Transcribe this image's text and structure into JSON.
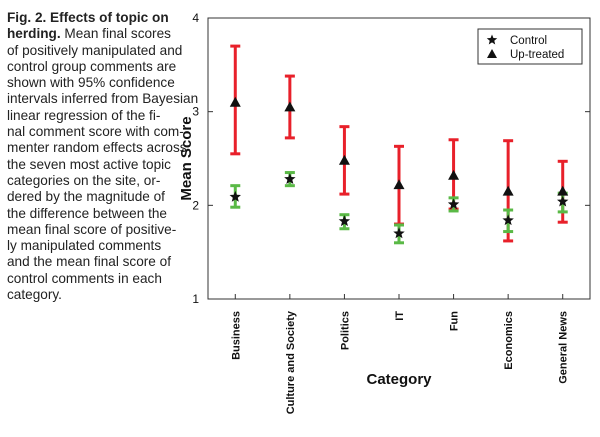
{
  "caption": {
    "lines": [
      {
        "bold": "Fig. 2. Effects of topic on",
        "rest": ""
      },
      {
        "bold": "herding.",
        "rest": " Mean final scores"
      },
      {
        "bold": "",
        "rest": "of positively manipulated and"
      },
      {
        "bold": "",
        "rest": "control group comments are"
      },
      {
        "bold": "",
        "rest": "shown with 95% confidence"
      },
      {
        "bold": "",
        "rest": "intervals inferred from Bayesian"
      },
      {
        "bold": "",
        "rest": "linear regression of the fi-"
      },
      {
        "bold": "",
        "rest": "nal comment score with com-"
      },
      {
        "bold": "",
        "rest": "menter random effects across"
      },
      {
        "bold": "",
        "rest": "the seven most active topic"
      },
      {
        "bold": "",
        "rest": "categories on the site, or-"
      },
      {
        "bold": "",
        "rest": "dered by the magnitude of"
      },
      {
        "bold": "",
        "rest": "the difference between the"
      },
      {
        "bold": "",
        "rest": "mean final score of positive-"
      },
      {
        "bold": "",
        "rest": "ly manipulated comments"
      },
      {
        "bold": "",
        "rest": "and the mean final score of"
      },
      {
        "bold": "",
        "rest": "control comments in each"
      },
      {
        "bold": "",
        "rest": "category."
      }
    ]
  },
  "colors": {
    "treated_ci": "#e8202a",
    "control_ci": "#5ab946",
    "marker": "#111111",
    "axis": "#333333"
  },
  "chart_data": {
    "type": "scatter",
    "title": "",
    "xlabel": "Category",
    "ylabel": "Mean Score",
    "ylim": [
      1,
      4
    ],
    "yticks": [
      "1",
      "2",
      "3",
      "4"
    ],
    "categories": [
      "Business",
      "Culture and Society",
      "Politics",
      "IT",
      "Fun",
      "Economics",
      "General News"
    ],
    "legend_position": "top-right",
    "grid": false,
    "series": [
      {
        "name": "Control",
        "marker": "star",
        "values": [
          2.09,
          2.28,
          1.83,
          1.7,
          2.01,
          1.84,
          2.04
        ],
        "ci_low": [
          1.98,
          2.21,
          1.75,
          1.6,
          1.94,
          1.72,
          1.93
        ],
        "ci_high": [
          2.21,
          2.35,
          1.9,
          1.79,
          2.08,
          1.95,
          2.13
        ]
      },
      {
        "name": "Up-treated",
        "marker": "triangle",
        "values": [
          3.1,
          3.05,
          2.48,
          2.22,
          2.32,
          2.15,
          2.15
        ],
        "ci_low": [
          2.55,
          2.72,
          2.12,
          1.8,
          1.96,
          1.62,
          1.82
        ],
        "ci_high": [
          3.7,
          3.38,
          2.84,
          2.63,
          2.7,
          2.69,
          2.47
        ]
      }
    ]
  }
}
